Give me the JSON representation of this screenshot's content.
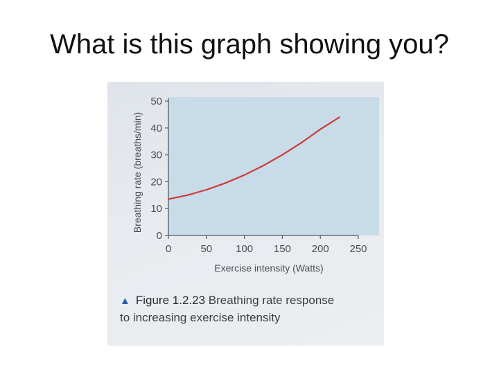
{
  "slide": {
    "title": "What is this graph showing you?"
  },
  "caption": {
    "marker_icon": "triangle-up-icon",
    "figure_label": "Figure 1.2.23",
    "line1_rest": "Breathing rate response",
    "line2": "to increasing exercise intensity"
  },
  "colors": {
    "plot_background": "#c8dbe9",
    "curve": "#cc3b36",
    "marker": "#1f63a8",
    "axis": "#555a60"
  },
  "chart_data": {
    "type": "line",
    "title": "",
    "xlabel": "Exercise intensity (Watts)",
    "ylabel": "Breathing rate (breaths/min)",
    "xlim": [
      0,
      250
    ],
    "ylim": [
      0,
      50
    ],
    "xticks": [
      0,
      50,
      100,
      150,
      200,
      250
    ],
    "yticks": [
      0,
      10,
      20,
      30,
      40,
      50
    ],
    "grid": false,
    "series": [
      {
        "x": [
          0,
          25,
          50,
          75,
          100,
          125,
          150,
          175,
          200,
          225
        ],
        "y": [
          13.5,
          15,
          17,
          19.5,
          22.5,
          26,
          30,
          34.5,
          39.5,
          44
        ]
      }
    ]
  }
}
